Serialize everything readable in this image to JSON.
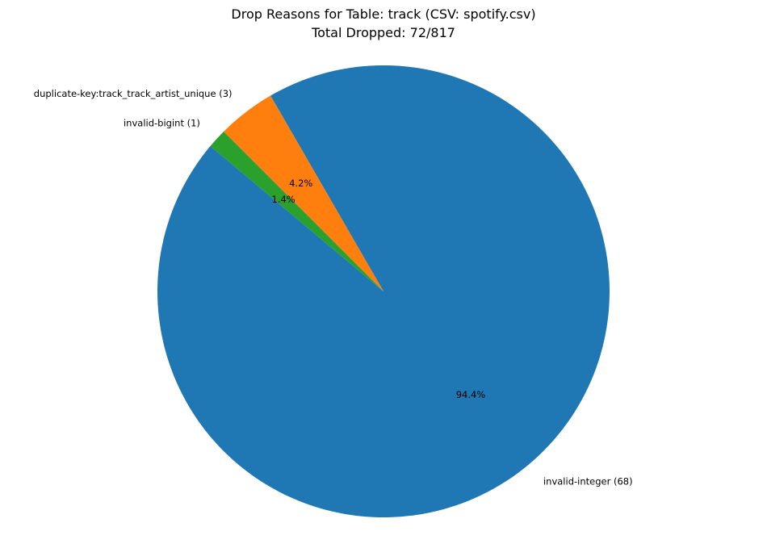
{
  "chart_data": {
    "type": "pie",
    "title": "Drop Reasons for Table: track (CSV: spotify.csv)",
    "subtitle": "Total Dropped: 72/817",
    "slices": [
      {
        "label": "invalid-integer (68)",
        "value": 68,
        "percent_label": "94.4%",
        "color": "#1f77b4"
      },
      {
        "label": "duplicate-key:track_track_artist_unique (3)",
        "value": 3,
        "percent_label": "4.2%",
        "color": "#ff7f0e"
      },
      {
        "label": "invalid-bigint (1)",
        "value": 1,
        "percent_label": "1.4%",
        "color": "#2ca02c"
      }
    ],
    "start_angle_deg": 140,
    "direction": "counterclockwise",
    "legend": "none",
    "grid": false
  }
}
